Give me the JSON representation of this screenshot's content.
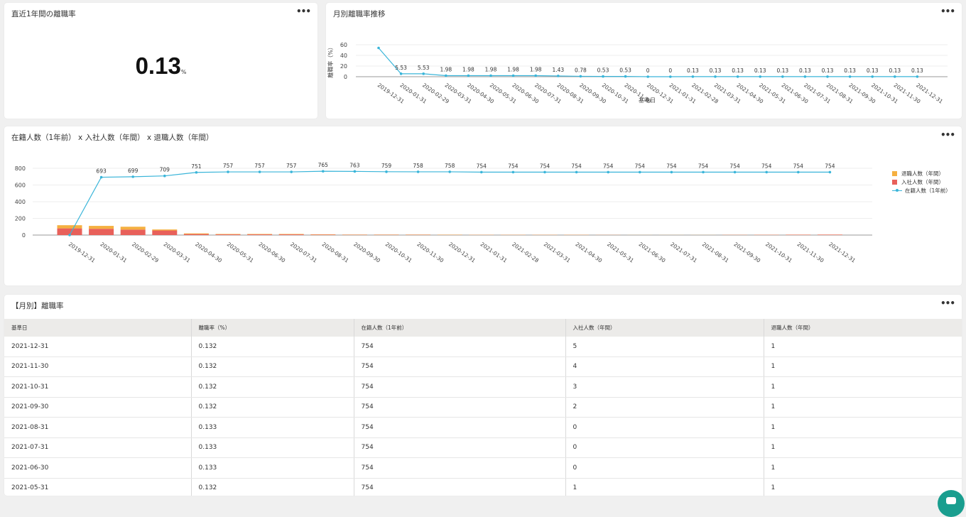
{
  "kpi": {
    "title": "直近1年間の離職率",
    "value": "0.13",
    "unit": "%",
    "menu": "•••"
  },
  "trend": {
    "title": "月別離職率推移",
    "menu": "•••"
  },
  "combo": {
    "title": "在籍人数（1年前） x 入社人数（年間） x 退職人数（年間）",
    "menu": "•••",
    "legend": [
      {
        "label": "退職人数（年間）",
        "color": "#f5b041"
      },
      {
        "label": "入社人数（年間）",
        "color": "#e8605a"
      },
      {
        "label": "在籍人数（1年前）",
        "color": "#3ab5d9"
      }
    ]
  },
  "table": {
    "title": "【月別】離職率",
    "menu": "•••",
    "columns": [
      "基準日",
      "離職率（%）",
      "在籍人数（1年前）",
      "入社人数（年間）",
      "退職人数（年間）"
    ],
    "rows": [
      [
        "2021-12-31",
        "0.132",
        "754",
        "5",
        "1"
      ],
      [
        "2021-11-30",
        "0.132",
        "754",
        "4",
        "1"
      ],
      [
        "2021-10-31",
        "0.132",
        "754",
        "3",
        "1"
      ],
      [
        "2021-09-30",
        "0.132",
        "754",
        "2",
        "1"
      ],
      [
        "2021-08-31",
        "0.133",
        "754",
        "0",
        "1"
      ],
      [
        "2021-07-31",
        "0.133",
        "754",
        "0",
        "1"
      ],
      [
        "2021-06-30",
        "0.133",
        "754",
        "0",
        "1"
      ],
      [
        "2021-05-31",
        "0.132",
        "754",
        "1",
        "1"
      ]
    ]
  },
  "chart_data": [
    {
      "type": "line",
      "title": "月別離職率推移",
      "xlabel": "基準日",
      "ylabel": "離職率（%）",
      "ylim": [
        0,
        60
      ],
      "yticks": [
        0,
        20,
        40,
        60
      ],
      "grid": true,
      "x": [
        "2019-12-31",
        "2020-01-31",
        "2020-02-29",
        "2020-03-31",
        "2020-04-30",
        "2020-05-31",
        "2020-06-30",
        "2020-07-31",
        "2020-08-31",
        "2020-09-30",
        "2020-10-31",
        "2020-11-30",
        "2020-12-31",
        "2021-01-31",
        "2021-02-28",
        "2021-03-31",
        "2021-04-30",
        "2021-05-31",
        "2021-06-30",
        "2021-07-31",
        "2021-08-31",
        "2021-09-30",
        "2021-10-31",
        "2021-11-30",
        "2021-12-31"
      ],
      "series": [
        {
          "values": [
            54,
            5.53,
            5.53,
            1.98,
            1.98,
            1.98,
            1.98,
            1.98,
            1.43,
            0.78,
            0.53,
            0.53,
            0,
            0,
            0.13,
            0.13,
            0.13,
            0.13,
            0.13,
            0.13,
            0.13,
            0.13,
            0.13,
            0.13,
            0.13
          ],
          "labels": [
            "",
            "5.53",
            "5.53",
            "1.98",
            "1.98",
            "1.98",
            "1.98",
            "1.98",
            "1.43",
            "0.78",
            "0.53",
            "0.53",
            "0",
            "0",
            "0.13",
            "0.13",
            "0.13",
            "0.13",
            "0.13",
            "0.13",
            "0.13",
            "0.13",
            "0.13",
            "0.13",
            "0.13"
          ],
          "color": "#3ab5d9"
        }
      ]
    },
    {
      "type": "bar",
      "title": "在籍人数（1年前） x 入社人数（年間） x 退職人数（年間）",
      "ylim": [
        0,
        800
      ],
      "yticks": [
        0,
        200,
        400,
        600,
        800
      ],
      "grid": true,
      "legend": "right",
      "categories": [
        "2019-12-31",
        "2020-01-31",
        "2020-02-29",
        "2020-03-31",
        "2020-04-30",
        "2020-05-31",
        "2020-06-30",
        "2020-07-31",
        "2020-08-31",
        "2020-09-30",
        "2020-10-31",
        "2020-11-30",
        "2020-12-31",
        "2021-01-31",
        "2021-02-28",
        "2021-03-31",
        "2021-04-30",
        "2021-05-31",
        "2021-06-30",
        "2021-07-31",
        "2021-08-31",
        "2021-09-30",
        "2021-10-31",
        "2021-11-30",
        "2021-12-31"
      ],
      "series": [
        {
          "name": "入社人数（年間）",
          "type": "bar",
          "stack": "a",
          "color": "#e8605a",
          "values": [
            80,
            75,
            65,
            55,
            12,
            8,
            8,
            8,
            5,
            3,
            3,
            3,
            2,
            2,
            2,
            2,
            2,
            1,
            0,
            0,
            0,
            2,
            3,
            4,
            5
          ]
        },
        {
          "name": "退職人数（年間）",
          "type": "bar",
          "stack": "a",
          "color": "#f5b041",
          "values": [
            38,
            35,
            35,
            12,
            8,
            5,
            5,
            5,
            4,
            3,
            3,
            3,
            3,
            2,
            2,
            2,
            2,
            1,
            1,
            1,
            1,
            1,
            1,
            1,
            1
          ]
        },
        {
          "name": "在籍人数（1年前）",
          "type": "line",
          "color": "#3ab5d9",
          "values": [
            0,
            693,
            699,
            709,
            751,
            757,
            757,
            757,
            765,
            763,
            759,
            758,
            758,
            754,
            754,
            754,
            754,
            754,
            754,
            754,
            754,
            754,
            754,
            754,
            754
          ],
          "labels": [
            "",
            "693",
            "699",
            "709",
            "751",
            "757",
            "757",
            "757",
            "765",
            "763",
            "759",
            "758",
            "758",
            "754",
            "754",
            "754",
            "754",
            "754",
            "754",
            "754",
            "754",
            "754",
            "754",
            "754",
            "754"
          ]
        }
      ]
    }
  ]
}
